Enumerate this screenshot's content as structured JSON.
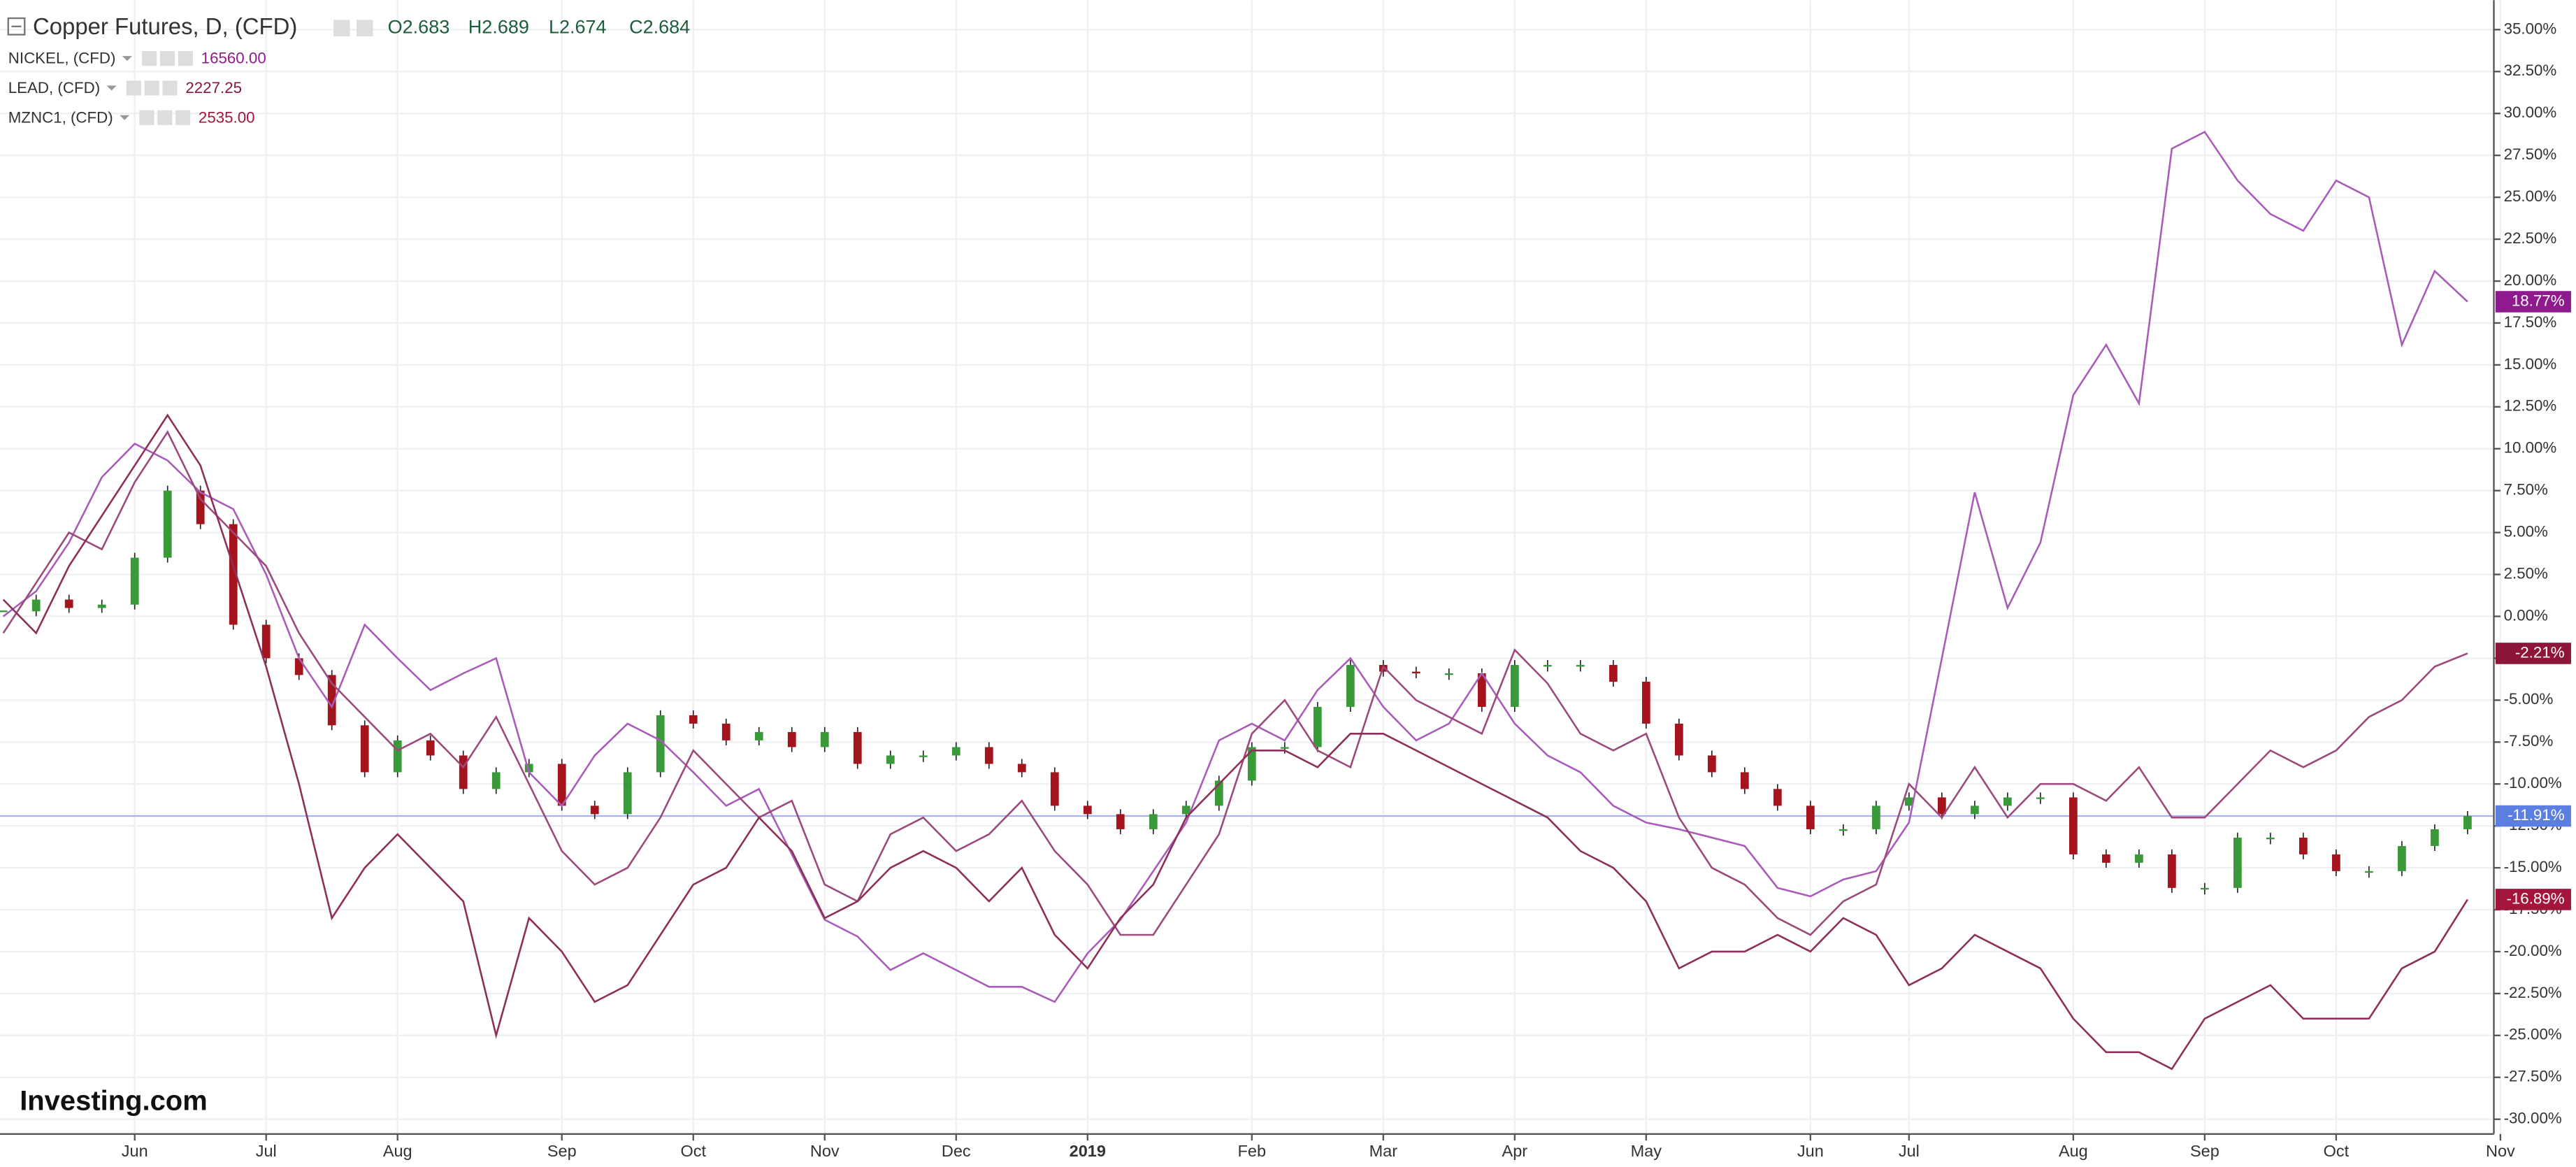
{
  "chart_data": {
    "type": "line",
    "title": "Copper Futures, D, (CFD)",
    "ohlc": [
      "O2.683",
      "H2.689",
      "L2.674",
      "C2.684"
    ],
    "watermark": "Investing.com",
    "grid": true,
    "ylim": [
      -30.88,
      36.76
    ],
    "yticks": [
      {
        "value": 35,
        "label": "35.00%"
      },
      {
        "value": 32.5,
        "label": "32.50%"
      },
      {
        "value": 30,
        "label": "30.00%"
      },
      {
        "value": 27.5,
        "label": "27.50%"
      },
      {
        "value": 25,
        "label": "25.00%"
      },
      {
        "value": 22.5,
        "label": "22.50%"
      },
      {
        "value": 20,
        "label": "20.00%"
      },
      {
        "value": 17.5,
        "label": "17.50%"
      },
      {
        "value": 15,
        "label": "15.00%"
      },
      {
        "value": 12.5,
        "label": "12.50%"
      },
      {
        "value": 10,
        "label": "10.00%"
      },
      {
        "value": 7.5,
        "label": "7.50%"
      },
      {
        "value": 5,
        "label": "5.00%"
      },
      {
        "value": 2.5,
        "label": "2.50%"
      },
      {
        "value": 0,
        "label": "0.00%"
      },
      {
        "value": -2.5,
        "label": "-2.50%"
      },
      {
        "value": -5,
        "label": "-5.00%"
      },
      {
        "value": -7.5,
        "label": "-7.50%"
      },
      {
        "value": -10,
        "label": "-10.00%"
      },
      {
        "value": -12.5,
        "label": "-12.50%"
      },
      {
        "value": -15,
        "label": "-15.00%"
      },
      {
        "value": -17.5,
        "label": "-17.50%"
      },
      {
        "value": -20,
        "label": "-20.00%"
      },
      {
        "value": -22.5,
        "label": "-22.50%"
      },
      {
        "value": -25,
        "label": "-25.00%"
      },
      {
        "value": -27.5,
        "label": "-27.50%"
      },
      {
        "value": -30,
        "label": "-30.00%"
      }
    ],
    "categories": [
      null,
      null,
      null,
      null,
      "Jun",
      null,
      null,
      null,
      "Jul",
      null,
      null,
      null,
      "Aug",
      null,
      null,
      null,
      null,
      "Sep",
      null,
      null,
      null,
      "Oct",
      null,
      null,
      null,
      "Nov",
      null,
      null,
      null,
      "Dec",
      null,
      null,
      null,
      "2019",
      null,
      null,
      null,
      null,
      "Feb",
      null,
      null,
      null,
      "Mar",
      null,
      null,
      null,
      "Apr",
      null,
      null,
      null,
      "May",
      null,
      null,
      null,
      null,
      "Jun",
      null,
      null,
      "Jul",
      null,
      null,
      null,
      null,
      "Aug",
      null,
      null,
      null,
      "Sep",
      null,
      null,
      null,
      "Oct",
      null,
      null,
      null,
      null,
      "Nov"
    ],
    "series": [
      {
        "name": "Copper Futures, D, (CFD)",
        "style": "candles",
        "color": "#5b7fe0",
        "up_color": "#3a9a3a",
        "down_color": "#a3141c",
        "values": [
          0.3,
          1,
          0.5,
          0.7,
          3.5,
          7.5,
          5.5,
          -0.5,
          -2.5,
          -3.5,
          -6.5,
          -9.3,
          -7.4,
          -8.3,
          -10.3,
          -9.3,
          -8.8,
          -11.3,
          -11.8,
          -9.3,
          -5.9,
          -6.4,
          -7.4,
          -6.9,
          -7.8,
          -6.9,
          -8.8,
          -8.3,
          -8.3,
          -7.8,
          -8.8,
          -9.3,
          -11.3,
          -11.8,
          -12.7,
          -11.8,
          -11.3,
          -9.8,
          -7.8,
          -7.8,
          -5.4,
          -2.9,
          -3.3,
          -3.4,
          -3.4,
          -5.4,
          -2.9,
          -2.9,
          -2.9,
          -3.9,
          -6.4,
          -8.3,
          -9.3,
          -10.3,
          -11.3,
          -12.7,
          -12.7,
          -11.3,
          -10.8,
          -11.8,
          -11.3,
          -10.8,
          -10.8,
          -14.2,
          -14.7,
          -14.2,
          -16.2,
          -16.2,
          -13.2,
          -13.2,
          -14.2,
          -15.2,
          -15.2,
          -13.7,
          -12.7,
          -11.91,
          null
        ],
        "value_labels": [
          null,
          null,
          null,
          null,
          null,
          null,
          null,
          null,
          null,
          null,
          null,
          null,
          null,
          null,
          null,
          null,
          null,
          null,
          null,
          null,
          null,
          null,
          null,
          null,
          null,
          null,
          null,
          null,
          null,
          null,
          null,
          null,
          null,
          null,
          null,
          null,
          null,
          null,
          null,
          null,
          null,
          null,
          null,
          null,
          null,
          null,
          null,
          null,
          null,
          null,
          null,
          null,
          null,
          null,
          null,
          null,
          null,
          null,
          null,
          null,
          null,
          null,
          null,
          null,
          null,
          null,
          null,
          null,
          null,
          null,
          null,
          null,
          null,
          null,
          null,
          "-11.91%",
          null
        ]
      },
      {
        "name": "NICKEL, (CFD)",
        "price": "16560.00",
        "color": "#a95cb8",
        "label_color": "#8e1a8e",
        "values": [
          0,
          1.5,
          4.4,
          8.3,
          10.3,
          9.3,
          7.4,
          6.4,
          2.5,
          -2.5,
          -5.4,
          -0.5,
          -2.5,
          -4.4,
          -3.4,
          -2.5,
          -9.3,
          -11.3,
          -8.3,
          -6.4,
          -7.4,
          -9.3,
          -11.3,
          -10.3,
          -14.2,
          -18.1,
          -19.1,
          -21.1,
          -20.1,
          -21.1,
          -22.1,
          -22.1,
          -23,
          -20.1,
          -18.1,
          -15.2,
          -12.3,
          -7.4,
          -6.4,
          -7.4,
          -4.4,
          -2.5,
          -5.4,
          -7.4,
          -6.4,
          -3.4,
          -6.4,
          -8.3,
          -9.3,
          -11.3,
          -12.3,
          -12.7,
          -13.2,
          -13.7,
          -16.2,
          -16.7,
          -15.7,
          -15.2,
          -12.3,
          -2.5,
          7.4,
          0.5,
          4.4,
          13.2,
          16.2,
          12.7,
          27.9,
          28.9,
          26,
          24,
          23,
          26,
          25,
          16.2,
          20.6,
          18.77,
          null
        ],
        "value_labels": [
          null,
          null,
          null,
          null,
          null,
          null,
          null,
          null,
          null,
          null,
          null,
          null,
          null,
          null,
          null,
          null,
          null,
          null,
          null,
          null,
          null,
          null,
          null,
          null,
          null,
          null,
          null,
          null,
          null,
          null,
          null,
          null,
          null,
          null,
          null,
          null,
          null,
          null,
          null,
          null,
          null,
          null,
          null,
          null,
          null,
          null,
          null,
          null,
          null,
          null,
          null,
          null,
          null,
          null,
          null,
          null,
          null,
          null,
          null,
          null,
          null,
          null,
          null,
          null,
          null,
          null,
          null,
          null,
          null,
          null,
          null,
          null,
          null,
          null,
          null,
          "18.77%",
          null
        ]
      },
      {
        "name": "LEAD, (CFD)",
        "price": "2227.25",
        "color": "#9c4a7c",
        "label_color": "#8c1538",
        "values": [
          -1,
          2,
          5,
          4,
          8,
          11,
          7,
          5,
          3,
          -1,
          -4,
          -6,
          -8,
          -7,
          -9,
          -6,
          -10,
          -14,
          -16,
          -15,
          -12,
          -8,
          -10,
          -12,
          -11,
          -16,
          -17,
          -13,
          -12,
          -14,
          -13,
          -11,
          -14,
          -16,
          -19,
          -19,
          -16,
          -13,
          -7,
          -5,
          -8,
          -9,
          -3,
          -5,
          -6,
          -7,
          -2,
          -4,
          -7,
          -8,
          -7,
          -12,
          -15,
          -16,
          -18,
          -19,
          -17,
          -16,
          -10,
          -12,
          -9,
          -12,
          -10,
          -10,
          -11,
          -9,
          -12,
          -12,
          -10,
          -8,
          -9,
          -8,
          -6,
          -5,
          -3,
          -2.21,
          null
        ],
        "value_labels": [
          null,
          null,
          null,
          null,
          null,
          null,
          null,
          null,
          null,
          null,
          null,
          null,
          null,
          null,
          null,
          null,
          null,
          null,
          null,
          null,
          null,
          null,
          null,
          null,
          null,
          null,
          null,
          null,
          null,
          null,
          null,
          null,
          null,
          null,
          null,
          null,
          null,
          null,
          null,
          null,
          null,
          null,
          null,
          null,
          null,
          null,
          null,
          null,
          null,
          null,
          null,
          null,
          null,
          null,
          null,
          null,
          null,
          null,
          null,
          null,
          null,
          null,
          null,
          null,
          null,
          null,
          null,
          null,
          null,
          null,
          null,
          null,
          null,
          null,
          null,
          "-2.21%",
          null
        ]
      },
      {
        "name": "MZNC1, (CFD)",
        "price": "2535.00",
        "color": "#8e2f5a",
        "label_color": "#a3153a",
        "values": [
          1,
          -1,
          3,
          6,
          9,
          12,
          9,
          3,
          -3,
          -10,
          -18,
          -15,
          -13,
          -15,
          -17,
          -25,
          -18,
          -20,
          -23,
          -22,
          -19,
          -16,
          -15,
          -12,
          -14,
          -18,
          -17,
          -15,
          -14,
          -15,
          -17,
          -15,
          -19,
          -21,
          -18,
          -16,
          -12,
          -10,
          -8,
          -8,
          -9,
          -7,
          -7,
          -8,
          -9,
          -10,
          -11,
          -12,
          -14,
          -15,
          -17,
          -21,
          -20,
          -20,
          -19,
          -20,
          -18,
          -19,
          -22,
          -21,
          -19,
          -20,
          -21,
          -24,
          -26,
          -26,
          -27,
          -24,
          -23,
          -22,
          -24,
          -24,
          -24,
          -21,
          -20,
          -16.89,
          null
        ],
        "value_labels": [
          null,
          null,
          null,
          null,
          null,
          null,
          null,
          null,
          null,
          null,
          null,
          null,
          null,
          null,
          null,
          null,
          null,
          null,
          null,
          null,
          null,
          null,
          null,
          null,
          null,
          null,
          null,
          null,
          null,
          null,
          null,
          null,
          null,
          null,
          null,
          null,
          null,
          null,
          null,
          null,
          null,
          null,
          null,
          null,
          null,
          null,
          null,
          null,
          null,
          null,
          null,
          null,
          null,
          null,
          null,
          null,
          null,
          null,
          null,
          null,
          null,
          null,
          null,
          null,
          null,
          null,
          null,
          null,
          null,
          null,
          null,
          null,
          null,
          null,
          null,
          "-16.89%",
          null
        ]
      }
    ]
  }
}
